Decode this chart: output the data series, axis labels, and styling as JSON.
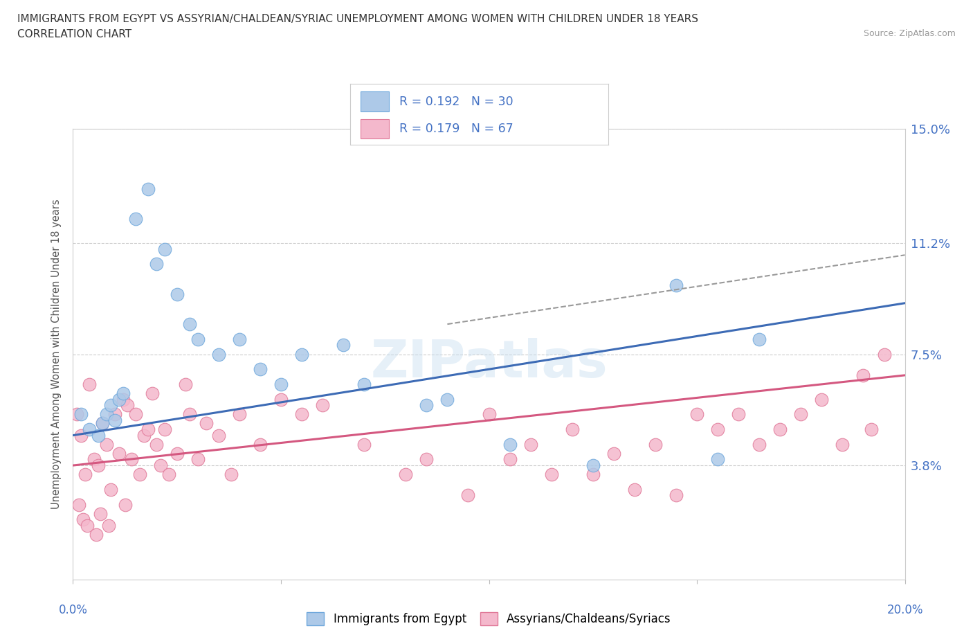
{
  "title_line1": "IMMIGRANTS FROM EGYPT VS ASSYRIAN/CHALDEAN/SYRIAC UNEMPLOYMENT AMONG WOMEN WITH CHILDREN UNDER 18 YEARS",
  "title_line2": "CORRELATION CHART",
  "source": "Source: ZipAtlas.com",
  "ylabel": "Unemployment Among Women with Children Under 18 years",
  "watermark": "ZIPatlas",
  "egypt_R": 0.192,
  "egypt_N": 30,
  "assyrian_R": 0.179,
  "assyrian_N": 67,
  "blue_color": "#adc9e8",
  "blue_edge_color": "#6fa8dc",
  "blue_line_color": "#3d6bb5",
  "pink_color": "#f4b8cc",
  "pink_edge_color": "#e07898",
  "pink_line_color": "#d45880",
  "egypt_scatter_x": [
    0.2,
    0.4,
    0.6,
    0.7,
    0.8,
    0.9,
    1.0,
    1.1,
    1.2,
    1.5,
    1.8,
    2.0,
    2.2,
    2.5,
    2.8,
    3.0,
    3.5,
    4.0,
    4.5,
    5.0,
    5.5,
    6.5,
    7.0,
    8.5,
    9.0,
    10.5,
    12.5,
    14.5,
    15.5,
    16.5
  ],
  "egypt_scatter_y": [
    5.5,
    5.0,
    4.8,
    5.2,
    5.5,
    5.8,
    5.3,
    6.0,
    6.2,
    12.0,
    13.0,
    10.5,
    11.0,
    9.5,
    8.5,
    8.0,
    7.5,
    8.0,
    7.0,
    6.5,
    7.5,
    7.8,
    6.5,
    5.8,
    6.0,
    4.5,
    3.8,
    9.8,
    4.0,
    8.0
  ],
  "assyrian_scatter_x": [
    0.1,
    0.2,
    0.3,
    0.4,
    0.5,
    0.6,
    0.7,
    0.8,
    0.9,
    1.0,
    1.1,
    1.2,
    1.3,
    1.4,
    1.5,
    1.6,
    1.7,
    1.8,
    1.9,
    2.0,
    2.1,
    2.2,
    2.3,
    2.5,
    2.7,
    2.8,
    3.0,
    3.2,
    3.5,
    3.8,
    4.0,
    4.5,
    5.0,
    5.5,
    6.0,
    7.0,
    8.0,
    8.5,
    9.5,
    10.0,
    10.5,
    11.0,
    11.5,
    12.0,
    12.5,
    13.0,
    13.5,
    14.0,
    14.5,
    15.0,
    15.5,
    16.0,
    16.5,
    17.0,
    17.5,
    18.0,
    18.5,
    19.0,
    19.2,
    19.5,
    0.15,
    0.25,
    0.35,
    0.55,
    0.65,
    0.85,
    1.25
  ],
  "assyrian_scatter_y": [
    5.5,
    4.8,
    3.5,
    6.5,
    4.0,
    3.8,
    5.2,
    4.5,
    3.0,
    5.5,
    4.2,
    6.0,
    5.8,
    4.0,
    5.5,
    3.5,
    4.8,
    5.0,
    6.2,
    4.5,
    3.8,
    5.0,
    3.5,
    4.2,
    6.5,
    5.5,
    4.0,
    5.2,
    4.8,
    3.5,
    5.5,
    4.5,
    6.0,
    5.5,
    5.8,
    4.5,
    3.5,
    4.0,
    2.8,
    5.5,
    4.0,
    4.5,
    3.5,
    5.0,
    3.5,
    4.2,
    3.0,
    4.5,
    2.8,
    5.5,
    5.0,
    5.5,
    4.5,
    5.0,
    5.5,
    6.0,
    4.5,
    6.8,
    5.0,
    7.5,
    2.5,
    2.0,
    1.8,
    1.5,
    2.2,
    1.8,
    2.5
  ],
  "egypt_line_x0": 0.0,
  "egypt_line_y0": 4.8,
  "egypt_line_x1": 20.0,
  "egypt_line_y1": 9.2,
  "assyr_line_x0": 0.0,
  "assyr_line_y0": 3.8,
  "assyr_line_x1": 20.0,
  "assyr_line_y1": 6.8,
  "dash_line_x0": 9.0,
  "dash_line_y0": 8.5,
  "dash_line_x1": 20.0,
  "dash_line_y1": 10.8,
  "xmin": 0.0,
  "xmax": 20.0,
  "ymin": 0.0,
  "ymax": 15.0,
  "ytick_vals": [
    0.0,
    3.8,
    7.5,
    11.2,
    15.0
  ],
  "ytick_labels": [
    "",
    "3.8%",
    "7.5%",
    "11.2%",
    "15.0%"
  ],
  "xtick_vals": [
    0,
    5,
    10,
    15,
    20
  ]
}
